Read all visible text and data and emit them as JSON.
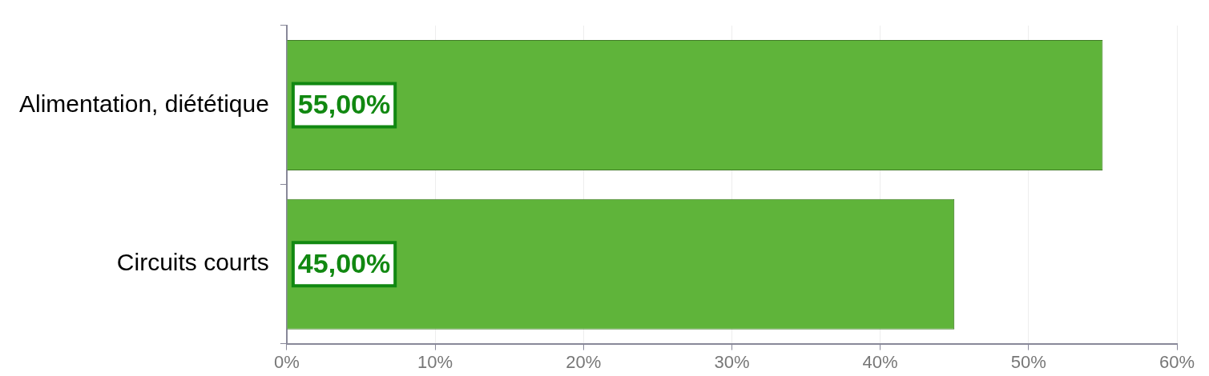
{
  "chart_data": {
    "type": "bar",
    "orientation": "horizontal",
    "categories": [
      "Alimentation, diététique",
      "Circuits courts"
    ],
    "values": [
      55,
      45
    ],
    "color": "#5fb43a",
    "value_labels": [
      "55,00%",
      "45,00%"
    ],
    "xlim": [
      0,
      60
    ],
    "xticks": [
      {
        "value": 0,
        "label": "0%"
      },
      {
        "value": 10,
        "label": "10%"
      },
      {
        "value": 20,
        "label": "20%"
      },
      {
        "value": 30,
        "label": "30%"
      },
      {
        "value": 40,
        "label": "40%"
      },
      {
        "value": 50,
        "label": "50%"
      },
      {
        "value": 60,
        "label": "60%"
      }
    ],
    "grid": "x",
    "legend": false
  }
}
